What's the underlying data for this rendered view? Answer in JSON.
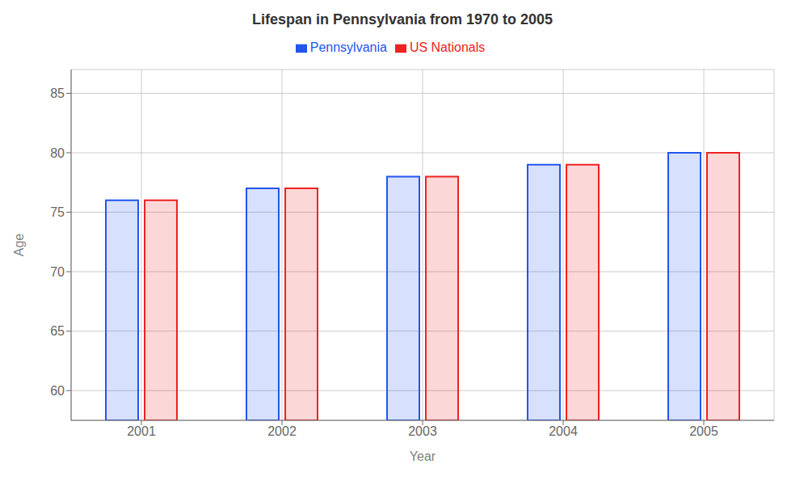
{
  "chart_data": {
    "type": "bar",
    "title": "Lifespan in Pennsylvania from 1970 to 2005",
    "x_label": "Year",
    "y_label": "Age",
    "categories": [
      "2001",
      "2002",
      "2003",
      "2004",
      "2005"
    ],
    "series": [
      {
        "name": "Pennsylvania",
        "color": "#2255ee",
        "values": [
          76,
          77,
          78,
          79,
          80
        ]
      },
      {
        "name": "US Nationals",
        "color": "#ee2222",
        "values": [
          76,
          77,
          78,
          79,
          80
        ]
      }
    ],
    "ylim": [
      57.5,
      87
    ],
    "yticks": [
      60,
      65,
      70,
      75,
      80,
      85
    ],
    "grid": true,
    "legend": "top"
  }
}
